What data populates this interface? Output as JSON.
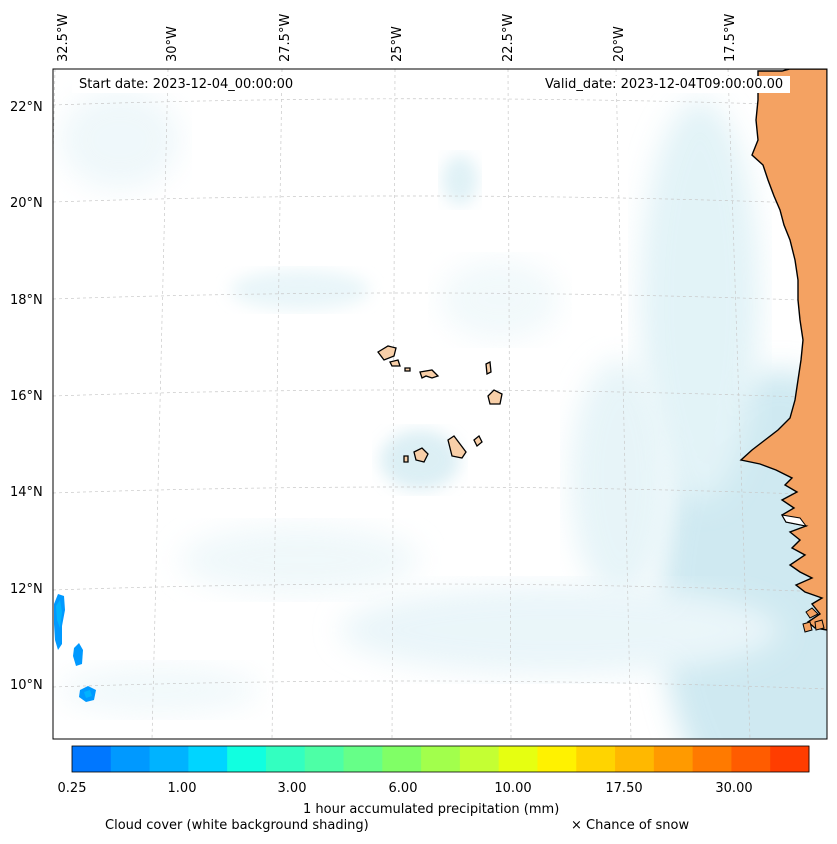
{
  "annotations": {
    "start_date": "Start date: 2023-12-04_00:00:00",
    "valid_date": "Valid_date: 2023-12-04T09:00:00.00"
  },
  "axes": {
    "lon_labels": [
      "32.5°W",
      "30°W",
      "27.5°W",
      "25°W",
      "22.5°W",
      "20°W",
      "17.5°W"
    ],
    "lat_labels": [
      "22°N",
      "20°N",
      "18°N",
      "16°N",
      "14°N",
      "12°N",
      "10°N"
    ]
  },
  "colorbar": {
    "title": "1 hour accumulated precipitation (mm)",
    "tick_labels": [
      "0.25",
      "1.00",
      "3.00",
      "6.00",
      "10.00",
      "17.50",
      "30.00"
    ],
    "colors": [
      "#0077ff",
      "#0099ff",
      "#00b3ff",
      "#00d5ff",
      "#11ffe0",
      "#33ffc0",
      "#4dffa6",
      "#66ff88",
      "#80ff66",
      "#a2ff4c",
      "#c4ff33",
      "#e6ff11",
      "#fff200",
      "#ffd400",
      "#ffb800",
      "#ff9a00",
      "#ff7a00",
      "#ff5c00",
      "#ff3d00"
    ]
  },
  "legend": {
    "cloud_cover": "Cloud cover (white background shading)",
    "snow": "× Chance of snow"
  },
  "colors": {
    "land_africa": "#f4a262",
    "land_islands": "#f8cfa8",
    "cloud": "#b8dfea",
    "precip_light": "#0099ff"
  }
}
